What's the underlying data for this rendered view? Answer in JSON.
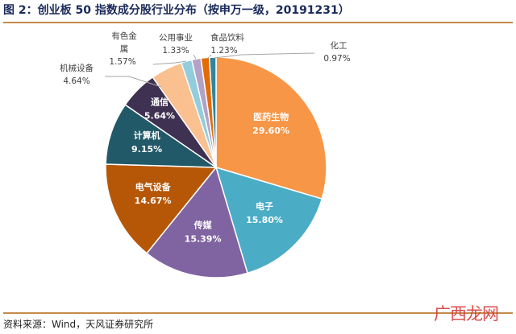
{
  "title": "图 2：创业板 50 指数成分股行业分布（按申万一级，20191231）",
  "source": "资料来源：Wind，天风证券研究所",
  "watermark": "广西龙网",
  "chart_data": {
    "type": "pie",
    "title": "图 2：创业板 50 指数成分股行业分布（按申万一级，20191231）",
    "slices": [
      {
        "label": "医药生物",
        "value": 29.6,
        "display": "29.60%",
        "color": "#f79646"
      },
      {
        "label": "电子",
        "value": 15.8,
        "display": "15.80%",
        "color": "#4bacc6"
      },
      {
        "label": "传媒",
        "value": 15.39,
        "display": "15.39%",
        "color": "#8064a2"
      },
      {
        "label": "电气设备",
        "value": 14.67,
        "display": "14.67%",
        "color": "#b65708"
      },
      {
        "label": "计算机",
        "value": 9.15,
        "display": "9.15%",
        "color": "#215968"
      },
      {
        "label": "通信",
        "value": 5.64,
        "display": "5.64%",
        "color": "#3f3151"
      },
      {
        "label": "机械设备",
        "value": 4.64,
        "display": "4.64%",
        "color": "#fac090"
      },
      {
        "label": "有色金属",
        "value": 1.57,
        "display": "1.57%",
        "color": "#93cddd"
      },
      {
        "label": "公用事业",
        "value": 1.33,
        "display": "1.33%",
        "color": "#b3a2c7"
      },
      {
        "label": "食品饮料",
        "value": 1.23,
        "display": "1.23%",
        "color": "#e36c09"
      },
      {
        "label": "化工",
        "value": 0.97,
        "display": "0.97%",
        "color": "#31859c"
      }
    ]
  }
}
